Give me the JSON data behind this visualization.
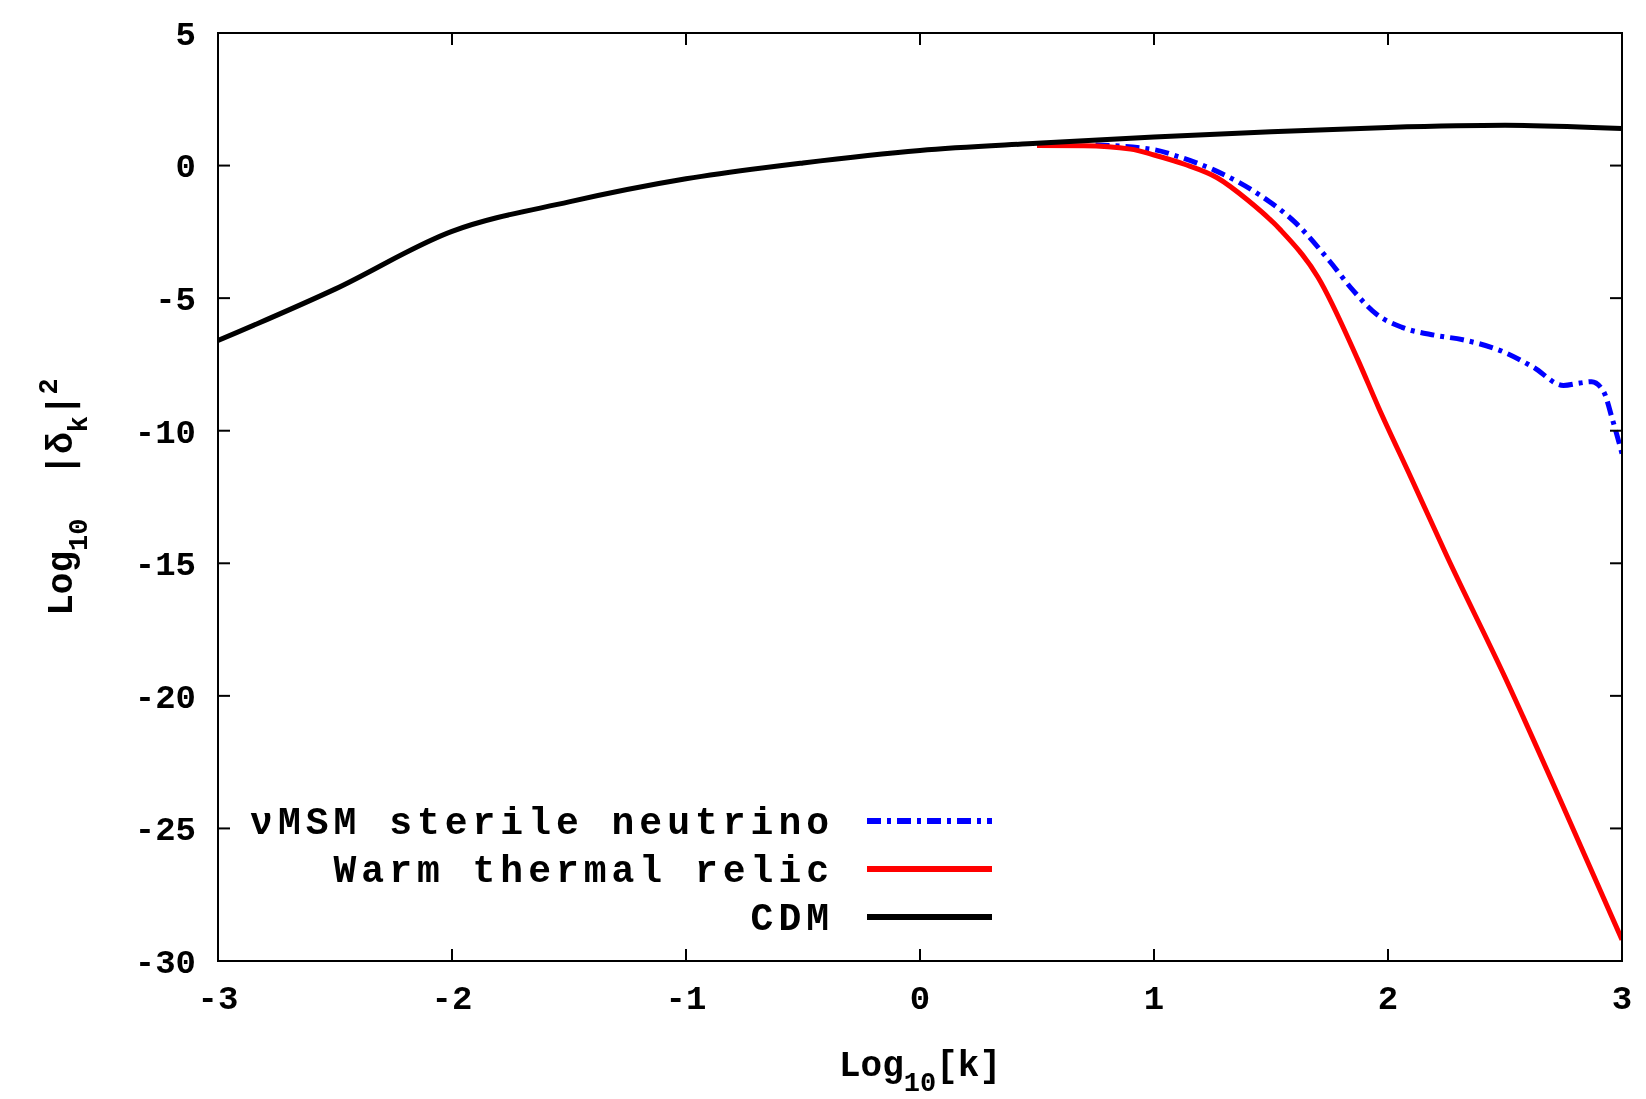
{
  "chart_data": {
    "type": "line",
    "xlabel": "Log$_{10}$[k]",
    "ylabel": "Log$_{10}$  |δ$_{k}$|$^{2}$",
    "xlim": [
      -3,
      3
    ],
    "ylim": [
      -30,
      5
    ],
    "xticks": [
      -3,
      -2,
      -1,
      0,
      1,
      2,
      3
    ],
    "yticks": [
      -30,
      -25,
      -20,
      -15,
      -10,
      -5,
      0,
      5
    ],
    "grid": false,
    "legend": "bottom left",
    "series": [
      {
        "name": "νMSM sterile neutrino",
        "color": "#0000ff",
        "line_style": "dashdot",
        "x": [
          0.75,
          1,
          1.1,
          1.26,
          1.45,
          1.61,
          1.75,
          1.85,
          1.95,
          2.06,
          2.2,
          2.32,
          2.5,
          2.62,
          2.75,
          2.82,
          2.87,
          2.92,
          2.96,
          3
        ],
        "values": [
          0.78,
          0.6,
          0.35,
          -0.18,
          -1.1,
          -2.2,
          -3.6,
          -4.7,
          -5.6,
          -6.1,
          -6.4,
          -6.57,
          -7.05,
          -7.6,
          -8.29,
          -8.2,
          -8.15,
          -8.5,
          -9.6,
          -10.86
        ]
      },
      {
        "name": "Warm thermal relic",
        "color": "#ff0000",
        "line_style": "solid",
        "x": [
          0.5,
          0.7,
          0.9,
          1,
          1.13,
          1.27,
          1.4,
          1.54,
          1.7,
          1.87,
          1.96,
          2.1,
          2.25,
          2.5,
          2.75,
          3
        ],
        "values": [
          0.76,
          0.75,
          0.62,
          0.4,
          0.05,
          -0.46,
          -1.3,
          -2.42,
          -4.2,
          -7.3,
          -9.13,
          -11.8,
          -14.7,
          -19.3,
          -24.2,
          -29.2
        ]
      },
      {
        "name": "CDM",
        "color": "#000000",
        "line_style": "solid",
        "x": [
          -3,
          -2.5,
          -2,
          -1.5,
          -1,
          -0.5,
          0,
          0.5,
          1,
          1.5,
          2,
          2.5,
          3
        ],
        "values": [
          -6.6,
          -4.66,
          -2.48,
          -1.37,
          -0.5,
          0.1,
          0.57,
          0.84,
          1.08,
          1.28,
          1.44,
          1.52,
          1.4
        ]
      }
    ]
  }
}
